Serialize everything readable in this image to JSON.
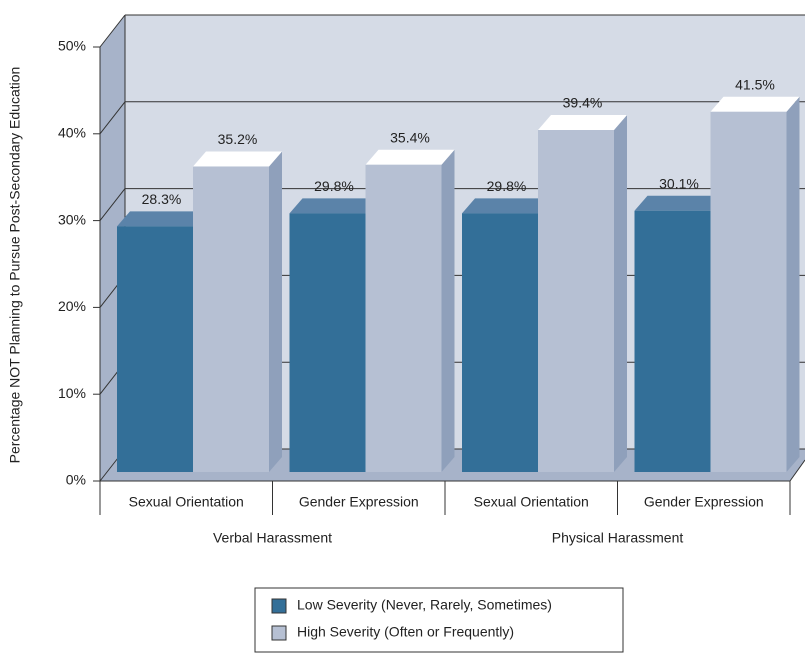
{
  "chart_data": {
    "type": "bar3d",
    "y_axis_label": "Percentage NOT Planning to Pursue Post-Secondary Education",
    "categories": [
      "Sexual Orientation",
      "Gender Expression",
      "Sexual Orientation",
      "Gender Expression"
    ],
    "category_groups": [
      "Verbal Harassment",
      "Physical Harassment"
    ],
    "series": [
      {
        "name": "Low Severity (Never, Rarely, Sometimes)",
        "color": "#336f98",
        "top_color": "#5b83a9",
        "values": [
          28.3,
          29.8,
          29.8,
          30.1
        ],
        "value_labels": [
          "28.3%",
          "29.8%",
          "29.8%",
          "30.1%"
        ]
      },
      {
        "name": "High Severity (Often or Frequently)",
        "color": "#b6c0d3",
        "top_color": "#ffffff",
        "side_color": "#8fa0bb",
        "values": [
          35.2,
          35.4,
          39.4,
          41.5
        ],
        "value_labels": [
          "35.2%",
          "35.4%",
          "39.4%",
          "41.5%"
        ]
      }
    ],
    "ylim": [
      0,
      50
    ],
    "yticks": [
      {
        "value": 0,
        "label": "0%"
      },
      {
        "value": 10,
        "label": "10%"
      },
      {
        "value": 20,
        "label": "20%"
      },
      {
        "value": 30,
        "label": "30%"
      },
      {
        "value": 40,
        "label": "40%"
      },
      {
        "value": 50,
        "label": "50%"
      }
    ],
    "grid": true,
    "legend": "bottom"
  }
}
